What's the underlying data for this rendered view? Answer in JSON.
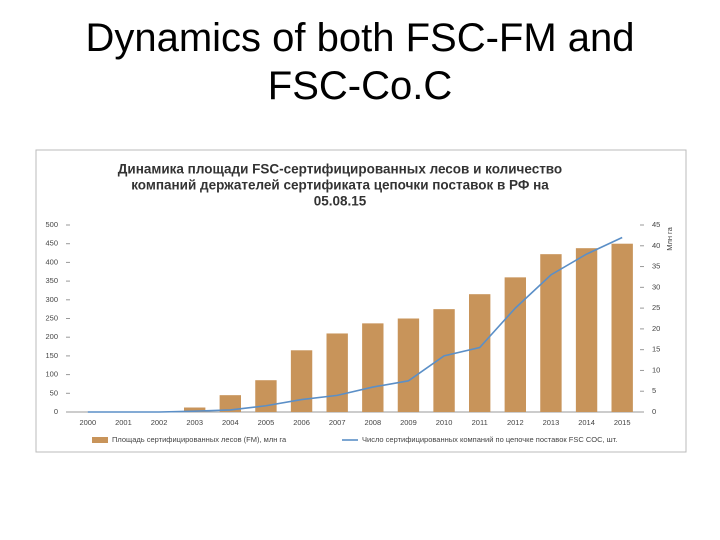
{
  "slide": {
    "title": [
      "Dynamics of both FSC-FM and",
      "FSC-Co.C"
    ]
  },
  "chart_data": {
    "type": "bar",
    "title": [
      "Динамика площади FSC-сертифицированных лесов и количество",
      "компаний держателей сертификата цепочки поставок в РФ на",
      "05.08.15"
    ],
    "y2_label": "Млн га",
    "categories": [
      "2000",
      "2001",
      "2002",
      "2003",
      "2004",
      "2005",
      "2006",
      "2007",
      "2008",
      "2009",
      "2010",
      "2011",
      "2012",
      "2013",
      "2014",
      "2015"
    ],
    "series": [
      {
        "name": "Площадь сертифицированных лесов (FM), млн га",
        "type": "bar",
        "color": "#c8945a",
        "values": [
          0,
          0,
          0,
          12,
          45,
          85,
          165,
          210,
          237,
          250,
          275,
          315,
          360,
          422,
          438,
          450
        ]
      },
      {
        "name": "Число сертифицированных компаний по цепочке поставок FSC COC, шт.",
        "type": "line",
        "axis": "y2",
        "color": "#5b8fc7",
        "values": [
          0,
          0,
          0,
          0.2,
          0.5,
          1.5,
          3,
          4,
          6,
          7.5,
          13.5,
          15.5,
          25,
          33,
          38,
          42
        ]
      }
    ],
    "ylim": [
      0,
      500
    ],
    "yticks": [
      0,
      50,
      100,
      150,
      200,
      250,
      300,
      350,
      400,
      450,
      500
    ],
    "y2lim": [
      0,
      45
    ],
    "y2ticks": [
      0,
      5,
      10,
      15,
      20,
      25,
      30,
      35,
      40,
      45
    ],
    "grid": false
  }
}
